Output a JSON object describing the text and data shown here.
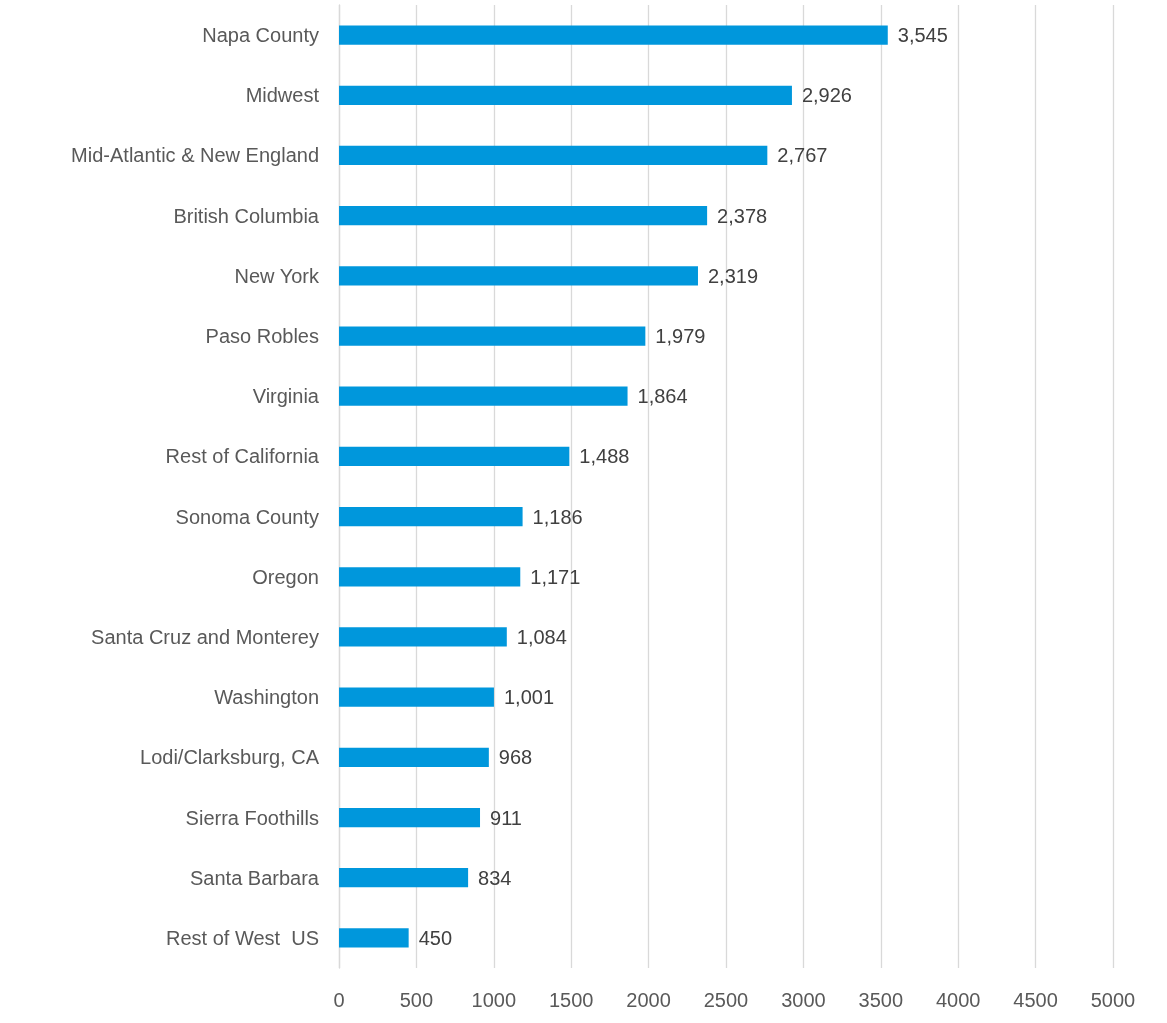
{
  "chart_data": {
    "type": "bar",
    "orientation": "horizontal",
    "categories": [
      "Napa County",
      "Midwest",
      "Mid-Atlantic & New England",
      "British Columbia",
      "New York",
      "Paso Robles",
      "Virginia",
      "Rest of California",
      "Sonoma County",
      "Oregon",
      "Santa Cruz and Monterey",
      "Washington",
      "Lodi/Clarksburg, CA",
      "Sierra Foothills",
      "Santa Barbara",
      "Rest of West  US"
    ],
    "values": [
      3545,
      2926,
      2767,
      2378,
      2319,
      1979,
      1864,
      1488,
      1186,
      1171,
      1084,
      1001,
      968,
      911,
      834,
      450
    ],
    "value_labels": [
      "3,545",
      "2,926",
      "2,767",
      "2,378",
      "2,319",
      "1,979",
      "1,864",
      "1,488",
      "1,186",
      "1,171",
      "1,084",
      "1,001",
      "968",
      "911",
      "834",
      "450"
    ],
    "color": "#0097dc",
    "xlim": [
      0,
      5000
    ],
    "xticks": [
      0,
      500,
      1000,
      1500,
      2000,
      2500,
      3000,
      3500,
      4000,
      4500,
      5000
    ],
    "grid": "x"
  }
}
